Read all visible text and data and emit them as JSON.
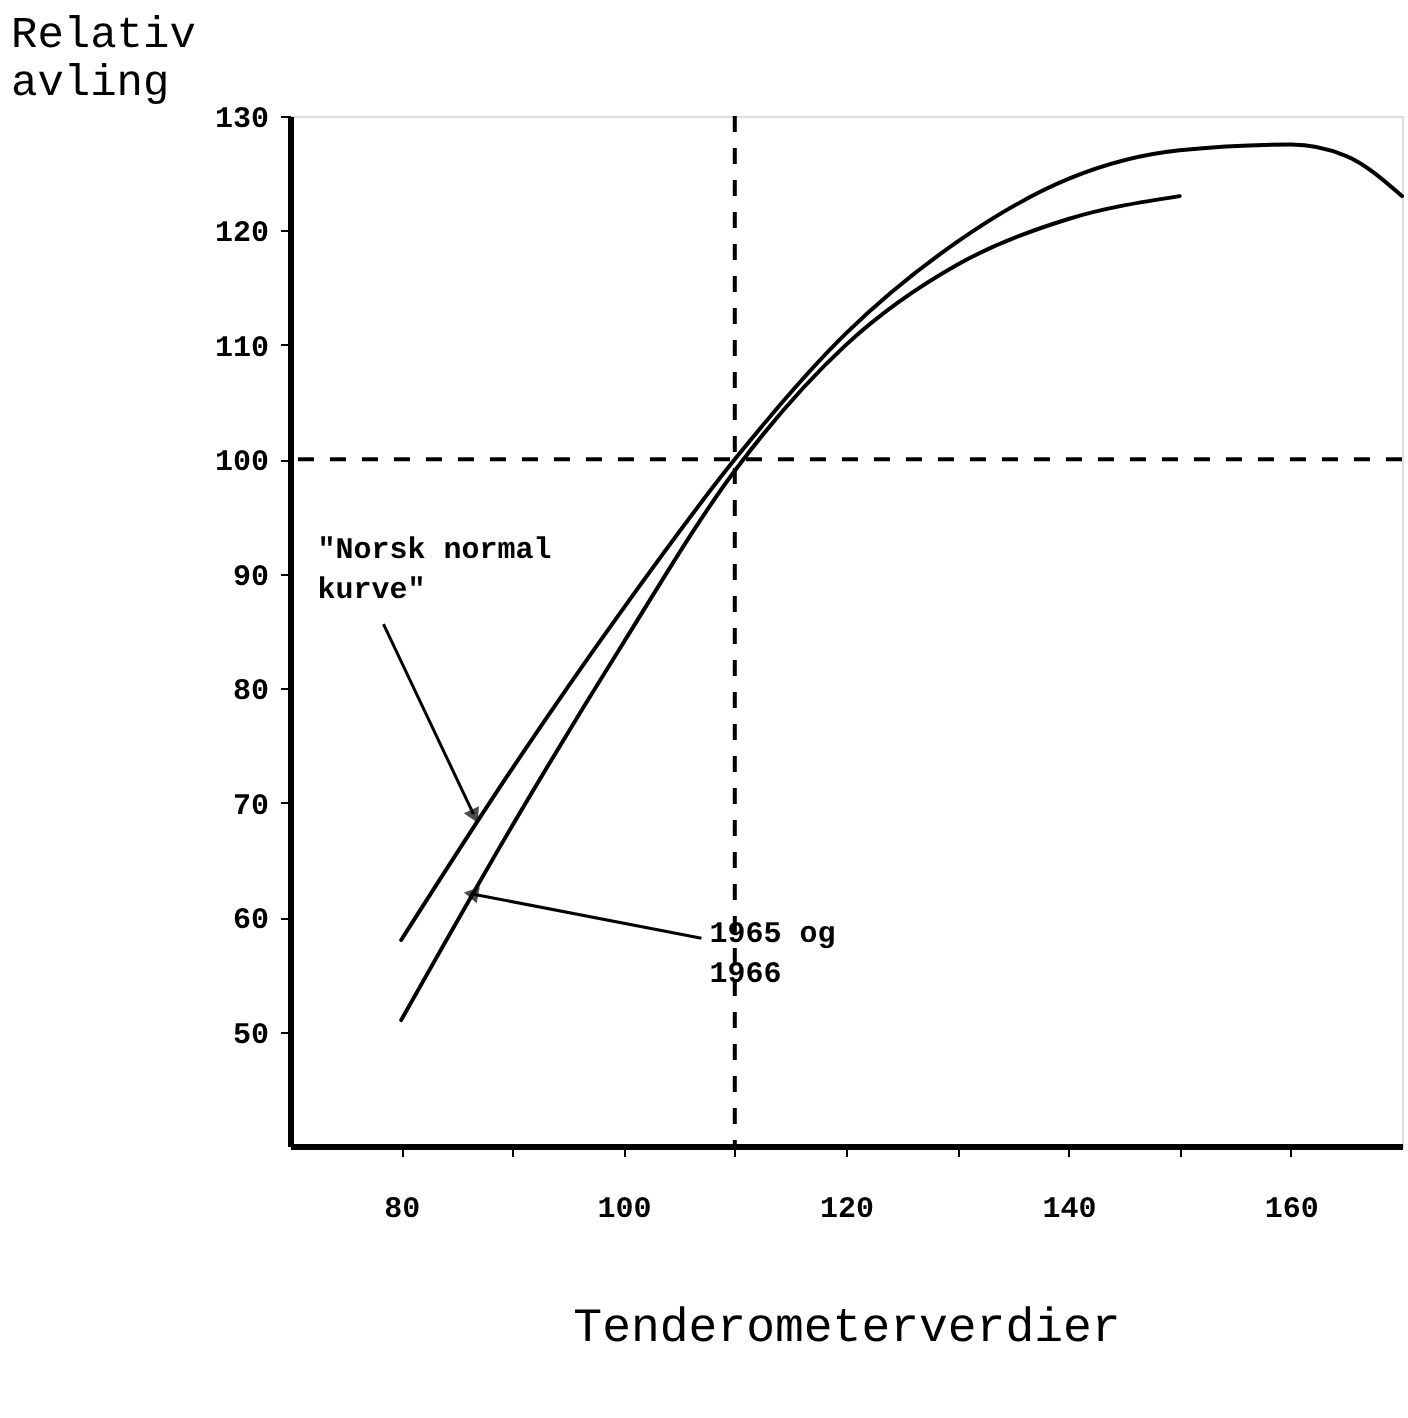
{
  "chart_data": {
    "type": "line",
    "xlabel": "Tenderometerverdier",
    "ylabel": "Relativ avling",
    "xlim": [
      70,
      170
    ],
    "ylim": [
      40,
      130
    ],
    "xticks": [
      80,
      {
        "value": 90,
        "label": null
      },
      100,
      {
        "value": 110,
        "label": null
      },
      120,
      {
        "value": 130,
        "label": null
      },
      140,
      {
        "value": 150,
        "label": null
      },
      160
    ],
    "yticks": [
      50,
      60,
      70,
      80,
      90,
      100,
      110,
      120,
      130
    ],
    "series": [
      {
        "color": "#000000",
        "x": [
          80,
          90,
          100,
          110,
          120,
          130,
          140,
          150,
          160,
          165,
          170
        ],
        "values": [
          58,
          73,
          87,
          100,
          111,
          119,
          124.5,
          127,
          127.5,
          126.5,
          123
        ]
      },
      {
        "color": "#000000",
        "x": [
          80,
          90,
          100,
          110,
          120,
          130,
          140,
          150
        ],
        "values": [
          51,
          68,
          84,
          99,
          110,
          117,
          121,
          123
        ]
      }
    ],
    "ref_lines": [
      {
        "axis": "y",
        "value": 100,
        "line_style": "dashed",
        "color": "#000000"
      },
      {
        "axis": "x",
        "value": 110,
        "line_style": "dashed",
        "color": "#000000"
      }
    ],
    "annotations": [
      {
        "text": "\"Norsk normal kurve\"",
        "x": 86.5,
        "y": 69
      },
      {
        "text": "1965 og 1966",
        "x": 86.5,
        "y": 62
      }
    ],
    "grid": false,
    "marker": "none",
    "line_style": "solid"
  }
}
